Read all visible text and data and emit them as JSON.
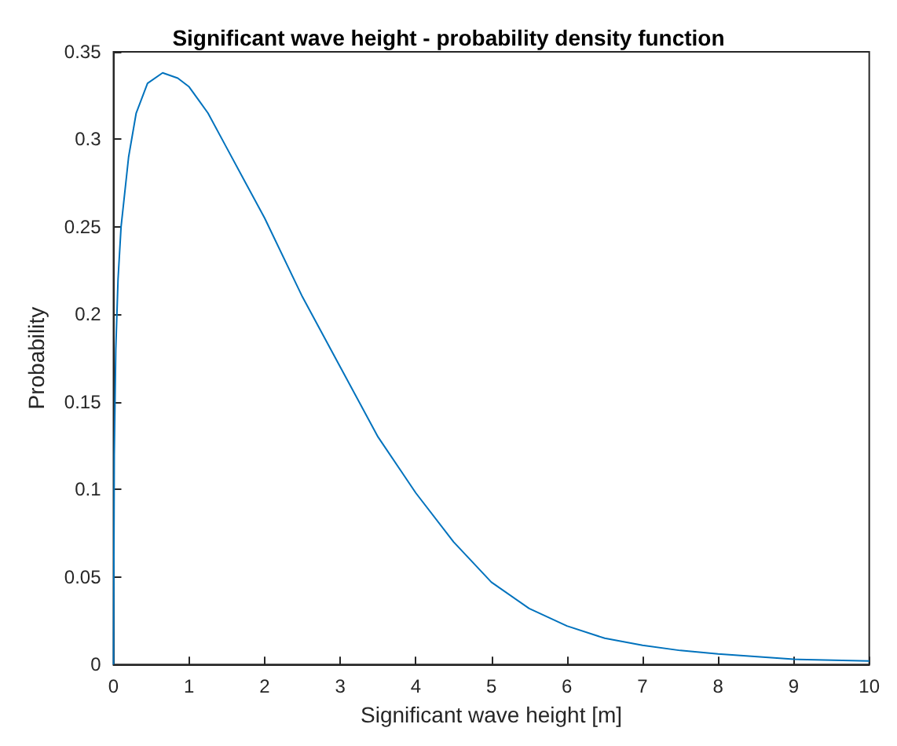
{
  "chart_data": {
    "type": "line",
    "title": "Significant wave height - probability density function",
    "xlabel": "Significant wave height [m]",
    "ylabel": "Probability",
    "series": [
      {
        "color": "#0072bd",
        "x": [
          0,
          0.01,
          0.03,
          0.06,
          0.1,
          0.2,
          0.3,
          0.45,
          0.65,
          0.85,
          1,
          1.25,
          1.5,
          1.75,
          2,
          2.5,
          3,
          3.5,
          4,
          4.5,
          5,
          5.5,
          6,
          6.5,
          7,
          7.5,
          8,
          9,
          10
        ],
        "values": [
          0,
          0.12,
          0.18,
          0.22,
          0.25,
          0.29,
          0.315,
          0.332,
          0.338,
          0.335,
          0.33,
          0.315,
          0.295,
          0.275,
          0.255,
          0.21,
          0.17,
          0.13,
          0.098,
          0.07,
          0.047,
          0.032,
          0.022,
          0.015,
          0.011,
          0.008,
          0.006,
          0.003,
          0.002
        ]
      }
    ],
    "xlim": [
      0,
      10
    ],
    "xticks": [
      0,
      1,
      2,
      3,
      4,
      5,
      6,
      7,
      8,
      9,
      10
    ],
    "ylim": [
      0,
      0.35
    ],
    "yticks": [
      0,
      0.05,
      0.1,
      0.15,
      0.2,
      0.25,
      0.3,
      0.35
    ],
    "grid": false,
    "marker": "none",
    "line_style": "solid"
  }
}
